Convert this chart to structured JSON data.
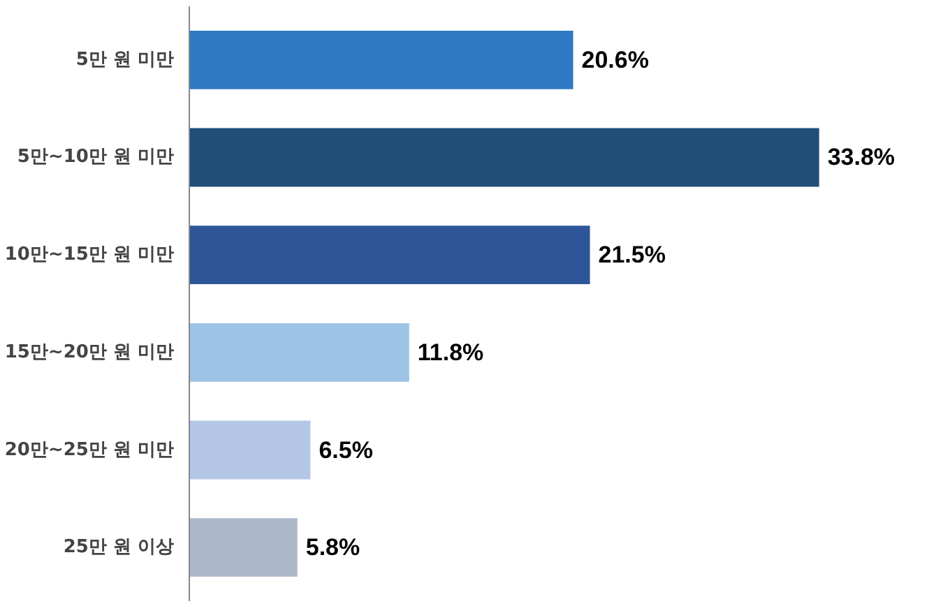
{
  "chart_data": {
    "type": "bar",
    "orientation": "horizontal",
    "categories": [
      "5만 원 미만",
      "5만~10만 원 미만",
      "10만~15만 원 미만",
      "15만~20만 원 미만",
      "20만~25만 원 미만",
      "25만 원 이상"
    ],
    "values": [
      20.6,
      33.8,
      21.5,
      11.8,
      6.5,
      5.8
    ],
    "value_labels": [
      "20.6%",
      "33.8%",
      "21.5%",
      "11.8%",
      "6.5%",
      "5.8%"
    ],
    "colors": [
      "#2f78c2",
      "#1f4e79",
      "#2e5597",
      "#9dc3e6",
      "#b4c7e7",
      "#adb9ca"
    ],
    "grid": false
  }
}
